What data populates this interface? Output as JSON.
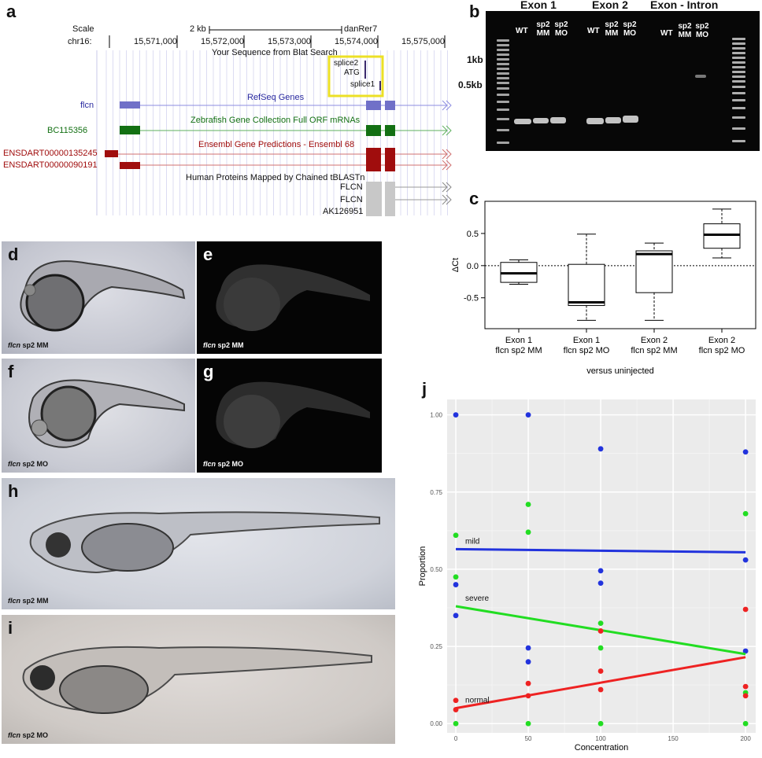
{
  "panel_letters": {
    "a": "a",
    "b": "b",
    "c": "c",
    "d": "d",
    "e": "e",
    "f": "f",
    "g": "g",
    "h": "h",
    "i": "i",
    "j": "j"
  },
  "browser": {
    "scale_label": "Scale",
    "chr_label": "chr16:",
    "scale_bar_label": "2 kb",
    "assembly": "danRer7",
    "coords": [
      "15,571,000",
      "15,572,000",
      "15,573,000",
      "15,574,000",
      "15,575,000"
    ],
    "blat_title": "Your Sequence from Blat Search",
    "blat_hits": [
      "splice2",
      "ATG",
      "splice1"
    ],
    "refseq_title": "RefSeq Genes",
    "refseq_name": "flcn",
    "zgc_title": "Zebrafish Gene Collection Full ORF mRNAs",
    "zgc_name": "BC115356",
    "ensembl_title": "Ensembl Gene Predictions - Ensembl 68",
    "ensembl_names": [
      "ENSDART00000135245",
      "ENSDART00000090191"
    ],
    "human_title": "Human Proteins Mapped by Chained tBLASTn",
    "human_names": [
      "FLCN",
      "FLCN",
      "AK126951"
    ],
    "colors": {
      "refseq": "#2a2aa0",
      "zgc": "#137013",
      "ensembl": "#a00d0d",
      "blat": "#ece026"
    }
  },
  "gel": {
    "groups": [
      "Exon 1",
      "Exon 2",
      "Exon - Intron"
    ],
    "lanes": [
      [
        "WT",
        "sp2 MM",
        "sp2 MO"
      ],
      [
        "WT",
        "sp2 MM",
        "sp2 MO"
      ],
      [
        "WT",
        "sp2 MM",
        "sp2 MO"
      ]
    ],
    "markers": [
      "1kb",
      "0.5kb"
    ]
  },
  "chart_data": [
    {
      "type": "box",
      "panel": "c",
      "ylabel": "ΔCt",
      "xlabel": "versus uninjected",
      "categories": [
        "Exon 1\nflcn sp2 MM",
        "Exon 1\nflcn sp2 MO",
        "Exon 2\nflcn sp2 MM",
        "Exon 2\nflcn sp2 MO"
      ],
      "category_lines": [
        [
          "Exon 1",
          "flcn sp2 MM"
        ],
        [
          "Exon 1",
          "flcn sp2 MO"
        ],
        [
          "Exon 2",
          "flcn sp2 MM"
        ],
        [
          "Exon 2",
          "flcn sp2 MO"
        ]
      ],
      "boxes": [
        {
          "min": -0.29,
          "q1": -0.26,
          "median": -0.12,
          "q3": 0.05,
          "max": 0.09
        },
        {
          "min": -0.85,
          "q1": -0.62,
          "median": -0.57,
          "q3": 0.02,
          "max": 0.49
        },
        {
          "min": -0.85,
          "q1": -0.42,
          "median": 0.18,
          "q3": 0.23,
          "max": 0.35
        },
        {
          "min": 0.12,
          "q1": 0.27,
          "median": 0.48,
          "q3": 0.65,
          "max": 0.88
        }
      ],
      "yticks": [
        0.5,
        0.0,
        -0.5
      ],
      "ytick_labels": [
        "0.5",
        "0.0",
        "-0.5"
      ],
      "ylim": [
        -0.98,
        1.0
      ],
      "reference_line": 0.0
    },
    {
      "type": "scatter",
      "panel": "j",
      "xlabel": "Concentration",
      "ylabel": "Proportion",
      "xlim": [
        -6,
        207
      ],
      "ylim": [
        -0.03,
        1.05
      ],
      "xticks": [
        0,
        50,
        100,
        150,
        200
      ],
      "xtick_labels": [
        "0",
        "50",
        "100",
        "150",
        "200"
      ],
      "yticks": [
        0,
        0.25,
        0.5,
        0.75,
        1.0
      ],
      "ytick_labels": [
        "0.00",
        "0.25",
        "0.50",
        "0.75",
        "1.00"
      ],
      "series": [
        {
          "name": "mild",
          "color": "#2233dd",
          "points": [
            [
              0,
              1.0
            ],
            [
              0,
              0.45
            ],
            [
              0,
              0.35
            ],
            [
              50,
              1.0
            ],
            [
              50,
              0.245
            ],
            [
              50,
              0.2
            ],
            [
              100,
              0.89
            ],
            [
              100,
              0.495
            ],
            [
              100,
              0.455
            ],
            [
              200,
              0.88
            ],
            [
              200,
              0.53
            ],
            [
              200,
              0.235
            ]
          ],
          "fit": [
            [
              0,
              0.565
            ],
            [
              200,
              0.555
            ]
          ]
        },
        {
          "name": "severe",
          "color": "#22dd22",
          "points": [
            [
              0,
              0.61
            ],
            [
              0,
              0.475
            ],
            [
              0,
              0.0
            ],
            [
              50,
              0.71
            ],
            [
              50,
              0.62
            ],
            [
              50,
              0.0
            ],
            [
              100,
              0.325
            ],
            [
              100,
              0.245
            ],
            [
              100,
              0.0
            ],
            [
              200,
              0.68
            ],
            [
              200,
              0.1
            ],
            [
              200,
              0.0
            ]
          ],
          "fit": [
            [
              0,
              0.38
            ],
            [
              200,
              0.225
            ]
          ]
        },
        {
          "name": "normal",
          "color": "#ee2222",
          "points": [
            [
              0,
              0.075
            ],
            [
              0,
              0.045
            ],
            [
              50,
              0.13
            ],
            [
              50,
              0.09
            ],
            [
              100,
              0.3
            ],
            [
              100,
              0.17
            ],
            [
              100,
              0.11
            ],
            [
              200,
              0.37
            ],
            [
              200,
              0.12
            ],
            [
              200,
              0.09
            ]
          ],
          "fit": [
            [
              0,
              0.05
            ],
            [
              200,
              0.215
            ]
          ]
        }
      ]
    }
  ],
  "photos": {
    "d": "flcn sp2 MM",
    "e": "flcn sp2 MM",
    "f": "flcn sp2 MO",
    "g": "flcn sp2 MO",
    "h": "flcn sp2 MM",
    "i": "flcn sp2 MO"
  },
  "photo_italic": "flcn",
  "photo_rest": {
    "d": " sp2 MM",
    "e": " sp2 MM",
    "f": " sp2 MO",
    "g": " sp2 MO",
    "h": " sp2 MM",
    "i": " sp2 MO"
  }
}
